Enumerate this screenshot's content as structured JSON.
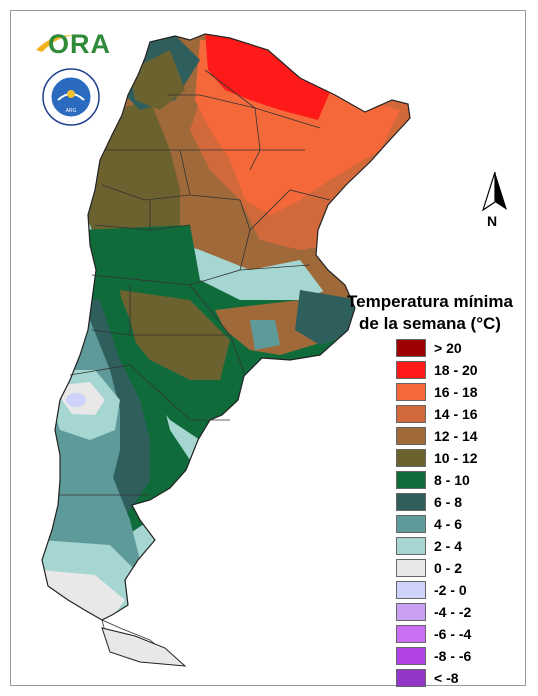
{
  "header": {
    "logo_text": "ORA",
    "seal_text": "SERVICIO METEOROLÓGICO NACIONAL · ARGENTINA"
  },
  "compass": {
    "north_label": "N"
  },
  "legend": {
    "title_line1": "Temperatura mínima",
    "title_line2": "de la semana (°C)",
    "items": [
      {
        "label": "> 20",
        "color": "#9c0000"
      },
      {
        "label": "18 - 20",
        "color": "#ff1a1a"
      },
      {
        "label": "16 - 18",
        "color": "#f5683a"
      },
      {
        "label": "14 - 16",
        "color": "#d2693b"
      },
      {
        "label": "12 - 14",
        "color": "#a0693a"
      },
      {
        "label": "10 - 12",
        "color": "#6b6230"
      },
      {
        "label": "8 - 10",
        "color": "#0f6b3a"
      },
      {
        "label": "6 - 8",
        "color": "#2f5f5c"
      },
      {
        "label": "4 - 6",
        "color": "#5e9a9a"
      },
      {
        "label": "2 - 4",
        "color": "#a6d6d2"
      },
      {
        "label": "0 - 2",
        "color": "#e8e8e8"
      },
      {
        "label": "-2 - 0",
        "color": "#cfd2fb"
      },
      {
        "label": "-4 - -2",
        "color": "#caa0f3"
      },
      {
        "label": "-6 - -4",
        "color": "#c86ff5"
      },
      {
        "label": "-8 - -6",
        "color": "#b244e6"
      },
      {
        "label": "< -8",
        "color": "#9238c9"
      }
    ]
  }
}
